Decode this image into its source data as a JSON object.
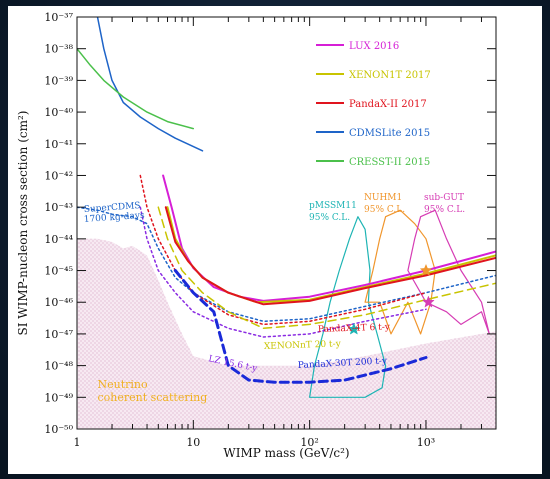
{
  "chart_data": {
    "type": "line",
    "xlabel": "WIMP mass (GeV/c²)",
    "ylabel": "SI WIMP-nucleon cross section (cm²)",
    "xscale": "log",
    "yscale": "log",
    "xlim": [
      1,
      4000
    ],
    "ylim": [
      1e-50,
      1e-37
    ],
    "grid": false,
    "legend_position": "top-right",
    "x_ticks": [
      {
        "value": 1,
        "label": "1"
      },
      {
        "value": 10,
        "label": "10"
      },
      {
        "value": 100,
        "label": "10²"
      },
      {
        "value": 1000,
        "label": "10³"
      }
    ],
    "y_ticks": [
      {
        "value": 1e-37,
        "label": "10⁻³⁷"
      },
      {
        "value": 1e-38,
        "label": "10⁻³⁸"
      },
      {
        "value": 1e-39,
        "label": "10⁻³⁹"
      },
      {
        "value": 1e-40,
        "label": "10⁻⁴⁰"
      },
      {
        "value": 1e-41,
        "label": "10⁻⁴¹"
      },
      {
        "value": 1e-42,
        "label": "10⁻⁴²"
      },
      {
        "value": 1e-43,
        "label": "10⁻⁴³"
      },
      {
        "value": 1e-44,
        "label": "10⁻⁴⁴"
      },
      {
        "value": 1e-45,
        "label": "10⁻⁴⁵"
      },
      {
        "value": 1e-46,
        "label": "10⁻⁴⁶"
      },
      {
        "value": 1e-47,
        "label": "10⁻⁴⁷"
      },
      {
        "value": 1e-48,
        "label": "10⁻⁴⁸"
      },
      {
        "value": 1e-49,
        "label": "10⁻⁴⁹"
      },
      {
        "value": 1e-50,
        "label": "10⁻⁵⁰"
      }
    ],
    "series": [
      {
        "name": "LUX 2016",
        "color": "#d61fd6",
        "style": "solid",
        "width": 2,
        "legend": true,
        "points": [
          [
            5.5,
            1e-42
          ],
          [
            6.5,
            1e-43
          ],
          [
            8,
            5e-45
          ],
          [
            10,
            1.2e-45
          ],
          [
            15,
            3e-46
          ],
          [
            25,
            1.5e-46
          ],
          [
            40,
            1.1e-46
          ],
          [
            100,
            1.5e-46
          ],
          [
            300,
            3.5e-46
          ],
          [
            1000,
            1e-45
          ],
          [
            4000,
            4e-45
          ]
        ]
      },
      {
        "name": "XENON1T 2017",
        "color": "#c8c400",
        "style": "solid",
        "width": 2,
        "legend": true,
        "points": [
          [
            6,
            1e-43
          ],
          [
            7,
            1e-44
          ],
          [
            9,
            2e-45
          ],
          [
            12,
            6e-46
          ],
          [
            20,
            2e-46
          ],
          [
            35,
            1e-46
          ],
          [
            100,
            1.2e-46
          ],
          [
            300,
            3e-46
          ],
          [
            1000,
            8e-46
          ],
          [
            4000,
            3e-45
          ]
        ]
      },
      {
        "name": "PandaX-II 2017",
        "color": "#e0141e",
        "style": "solid",
        "width": 2,
        "legend": true,
        "points": [
          [
            5.8,
            1e-43
          ],
          [
            7,
            8e-45
          ],
          [
            9,
            2e-45
          ],
          [
            12,
            6e-46
          ],
          [
            20,
            2e-46
          ],
          [
            40,
            8.6e-47
          ],
          [
            100,
            1.1e-46
          ],
          [
            300,
            2.8e-46
          ],
          [
            1000,
            7e-46
          ],
          [
            4000,
            2.5e-45
          ]
        ]
      },
      {
        "name": "CDMSLite 2015",
        "color": "#1e64c8",
        "style": "solid",
        "width": 1.5,
        "legend": true,
        "points": [
          [
            1.5,
            1e-37
          ],
          [
            1.7,
            1e-38
          ],
          [
            2,
            1e-39
          ],
          [
            2.5,
            2e-40
          ],
          [
            3.5,
            7e-41
          ],
          [
            5,
            3e-41
          ],
          [
            7,
            1.5e-41
          ],
          [
            12,
            6e-42
          ]
        ]
      },
      {
        "name": "CRESST-II 2015",
        "color": "#4bc04b",
        "style": "solid",
        "width": 1.5,
        "legend": true,
        "points": [
          [
            1,
            1e-38
          ],
          [
            1.3,
            3e-39
          ],
          [
            1.7,
            1e-39
          ],
          [
            2.5,
            3e-40
          ],
          [
            4,
            1e-40
          ],
          [
            6,
            5e-41
          ],
          [
            10,
            3e-41
          ]
        ]
      },
      {
        "name": "SuperCDMS",
        "color": "#1e64c8",
        "style": "dotted",
        "width": 1.5,
        "legend": false,
        "points": [
          [
            1,
            1e-43
          ],
          [
            1.5,
            8e-44
          ],
          [
            2,
            6e-44
          ],
          [
            3,
            5e-44
          ],
          [
            4,
            3e-44
          ],
          [
            5,
            5e-45
          ],
          [
            7,
            6e-46
          ],
          [
            10,
            2e-46
          ],
          [
            20,
            5e-47
          ],
          [
            40,
            2.5e-47
          ],
          [
            100,
            3e-47
          ],
          [
            1000,
            2e-46
          ],
          [
            4000,
            7e-46
          ]
        ]
      },
      {
        "name": "PandaX-4T",
        "color": "#e0141e",
        "style": "dotted",
        "width": 1.5,
        "legend": false,
        "points": [
          [
            3.5,
            1e-42
          ],
          [
            4,
            1e-43
          ],
          [
            5,
            1e-44
          ],
          [
            7,
            1e-45
          ],
          [
            10,
            2e-46
          ],
          [
            20,
            4e-47
          ],
          [
            40,
            2e-47
          ],
          [
            100,
            2.5e-47
          ],
          [
            300,
            6e-47
          ],
          [
            1000,
            2e-46
          ]
        ]
      },
      {
        "name": "XENONnT",
        "color": "#c8c400",
        "style": "dashed",
        "width": 1.5,
        "legend": false,
        "points": [
          [
            5,
            1e-43
          ],
          [
            6,
            1e-44
          ],
          [
            8,
            1e-45
          ],
          [
            12,
            2e-46
          ],
          [
            20,
            5e-47
          ],
          [
            40,
            1.5e-47
          ],
          [
            100,
            2e-47
          ],
          [
            300,
            4e-47
          ],
          [
            1000,
            1.2e-46
          ],
          [
            4000,
            4e-46
          ]
        ]
      },
      {
        "name": "LZ",
        "color": "#8a2be2",
        "style": "dotted",
        "width": 1.5,
        "legend": false,
        "points": [
          [
            3.5,
            1e-43
          ],
          [
            4,
            1e-44
          ],
          [
            5,
            1e-45
          ],
          [
            7,
            2e-46
          ],
          [
            10,
            5e-47
          ],
          [
            20,
            1.5e-47
          ],
          [
            40,
            8e-48
          ],
          [
            100,
            1e-47
          ],
          [
            300,
            2.5e-47
          ],
          [
            1000,
            6e-47
          ]
        ]
      },
      {
        "name": "PandaX-30T",
        "color": "#1a2ad8",
        "style": "dashed",
        "width": 3,
        "legend": false,
        "points": [
          [
            7,
            1e-45
          ],
          [
            10,
            2e-46
          ],
          [
            15,
            5e-47
          ],
          [
            20,
            1e-48
          ],
          [
            30,
            3.5e-49
          ],
          [
            50,
            3e-49
          ],
          [
            100,
            3e-49
          ],
          [
            200,
            3.5e-49
          ],
          [
            500,
            8e-49
          ],
          [
            1000,
            1.8e-48
          ]
        ]
      }
    ],
    "regions": [
      {
        "name": "pMSSM11",
        "color": "#1eb4b4",
        "points": [
          [
            100,
            1e-49
          ],
          [
            110,
            1e-48
          ],
          [
            130,
            1e-47
          ],
          [
            150,
            1e-46
          ],
          [
            180,
            1e-45
          ],
          [
            220,
            1e-44
          ],
          [
            260,
            5e-44
          ],
          [
            300,
            2e-44
          ],
          [
            330,
            1e-45
          ],
          [
            320,
            1e-46
          ],
          [
            380,
            1e-47
          ],
          [
            450,
            1e-48
          ],
          [
            420,
            2e-49
          ],
          [
            300,
            1e-49
          ],
          [
            200,
            1e-49
          ]
        ]
      },
      {
        "name": "NUHM1",
        "color": "#f0962d",
        "points": [
          [
            300,
            1e-46
          ],
          [
            350,
            1e-45
          ],
          [
            400,
            1e-44
          ],
          [
            450,
            5e-44
          ],
          [
            600,
            8e-44
          ],
          [
            800,
            3e-44
          ],
          [
            1000,
            1e-44
          ],
          [
            1200,
            1e-45
          ],
          [
            1100,
            1e-46
          ],
          [
            900,
            1e-47
          ],
          [
            700,
            1e-46
          ],
          [
            500,
            1e-47
          ],
          [
            400,
            1e-46
          ]
        ]
      },
      {
        "name": "sub-GUT",
        "color": "#d63cb4",
        "points": [
          [
            700,
            1e-45
          ],
          [
            800,
            1e-44
          ],
          [
            900,
            5e-44
          ],
          [
            1200,
            8e-44
          ],
          [
            1500,
            1e-44
          ],
          [
            2000,
            1e-45
          ],
          [
            3000,
            1e-46
          ],
          [
            3500,
            1e-47
          ],
          [
            3000,
            5e-47
          ],
          [
            2000,
            2e-47
          ],
          [
            1500,
            5e-47
          ],
          [
            1000,
            1e-46
          ]
        ]
      }
    ],
    "markers": [
      {
        "name": "pMSSM11 best fit",
        "shape": "star",
        "color": "#1eb4b4",
        "x": 240,
        "y": 1.4e-47
      },
      {
        "name": "NUHM1 best fit",
        "shape": "star",
        "color": "#f0962d",
        "x": 1000,
        "y": 1e-45
      },
      {
        "name": "sub-GUT best fit",
        "shape": "star",
        "color": "#d63cb4",
        "x": 1050,
        "y": 1e-46
      }
    ],
    "neutrino_floor": {
      "label_lines": [
        "Neutrino",
        "coherent scattering"
      ],
      "label_color": "#f0b020",
      "points": [
        [
          1,
          1e-44
        ],
        [
          1.5,
          1e-44
        ],
        [
          2,
          8e-45
        ],
        [
          2.5,
          5e-45
        ],
        [
          3,
          6e-45
        ],
        [
          4,
          3e-45
        ],
        [
          5,
          5e-46
        ],
        [
          6,
          1e-46
        ],
        [
          8,
          1e-47
        ],
        [
          10,
          2e-48
        ],
        [
          20,
          1e-48
        ],
        [
          50,
          1e-48
        ],
        [
          100,
          1e-48
        ],
        [
          300,
          2e-48
        ],
        [
          1000,
          5e-48
        ],
        [
          4000,
          1.2e-47
        ]
      ]
    },
    "annotations": [
      {
        "text": "pMSSM11",
        "color": "#1eb4b4"
      },
      {
        "text": "95% C.L.",
        "color": "#1eb4b4"
      },
      {
        "text": "NUHM1",
        "color": "#f0962d"
      },
      {
        "text": "95% C.L.",
        "color": "#f0962d"
      },
      {
        "text": "sub-GUT",
        "color": "#d63cb4"
      },
      {
        "text": "95% C.L.",
        "color": "#d63cb4"
      },
      {
        "text": "SuperCDMS",
        "color": "#1e64c8"
      },
      {
        "text": "1700 kg-days",
        "color": "#1e64c8"
      },
      {
        "text": "PandaX-4T 6 t-y",
        "color": "#e0141e"
      },
      {
        "text": "XENONnT 20 t-y",
        "color": "#c8c400"
      },
      {
        "text": "LZ 15.6 t-y",
        "color": "#8a2be2"
      },
      {
        "text": "PandaX-30T 200 t-y",
        "color": "#1a2ad8"
      }
    ]
  }
}
